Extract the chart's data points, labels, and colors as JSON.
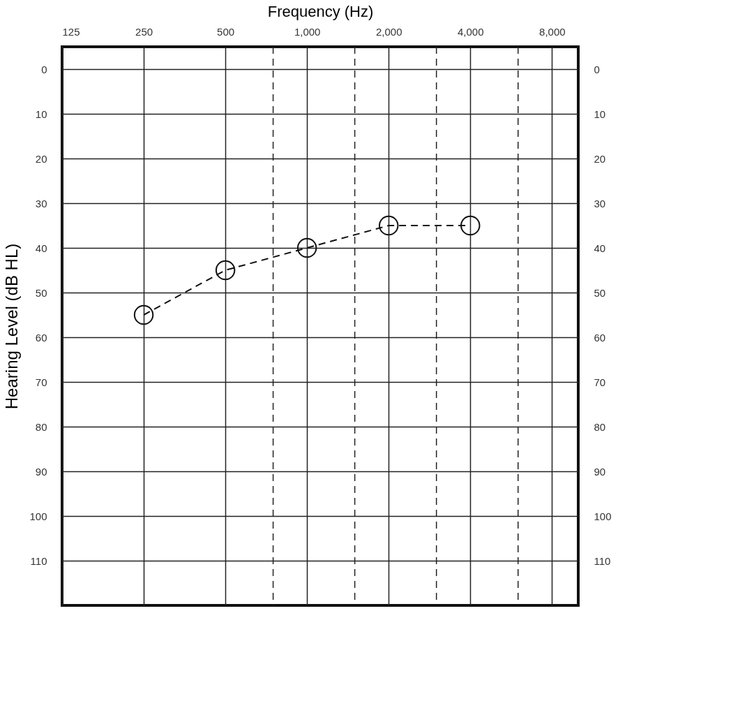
{
  "chart_data": {
    "type": "line",
    "xlabel": "Frequency (Hz)",
    "ylabel": "Hearing Level (dB HL)",
    "x": [
      250,
      500,
      1000,
      2000,
      4000
    ],
    "series": [
      {
        "color": "#111111",
        "values": [
          55,
          45,
          40,
          35,
          35
        ]
      }
    ],
    "log": "x",
    "marker": "circle",
    "line_style": "dashed",
    "grid": true,
    "xlim": [
      125,
      10000
    ],
    "xticks": [
      125,
      250,
      500,
      {
        "value": 1000,
        "label": "1,000"
      },
      {
        "value": 2000,
        "label": "2,000"
      },
      {
        "value": 4000,
        "label": "4,000"
      },
      {
        "value": 8000,
        "label": "8,000"
      }
    ],
    "ylim": [
      120,
      -5
    ],
    "yticks": [
      0,
      10,
      20,
      30,
      40,
      50,
      60,
      70,
      80,
      90,
      100,
      110
    ],
    "y2lim": [
      120,
      -5
    ],
    "y2ticks": [
      0,
      10,
      20,
      30,
      40,
      50,
      60,
      70,
      80,
      90,
      100,
      110
    ],
    "ref_lines": [
      {
        "axis": "x",
        "value": 750,
        "line_style": "dashed"
      },
      {
        "axis": "x",
        "value": 1500,
        "line_style": "dashed"
      },
      {
        "axis": "x",
        "value": 3000,
        "line_style": "dashed"
      },
      {
        "axis": "x",
        "value": 6000,
        "line_style": "dashed"
      }
    ]
  }
}
